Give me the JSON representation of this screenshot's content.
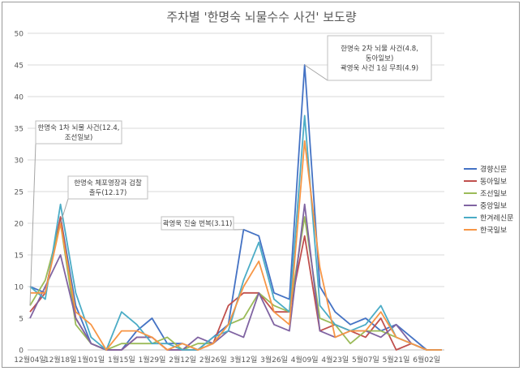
{
  "chart_data": {
    "type": "line",
    "title": "주차별 '한명숙 뇌물수수 사건' 보도량",
    "xlabel": "",
    "ylabel": "",
    "ylim": [
      0,
      50
    ],
    "yticks": [
      0,
      5,
      10,
      15,
      20,
      25,
      30,
      35,
      40,
      45,
      50
    ],
    "x_tick_labels": [
      "12월04일",
      "12월18일",
      "1월01일",
      "1월15일",
      "1월29일",
      "2월12일",
      "2월26일",
      "3월12일",
      "3월26일",
      "4월09일",
      "4월23일",
      "5월07일",
      "5월21일",
      "6월02일"
    ],
    "grid": true,
    "legend_position": "right",
    "x": [
      "12월04일",
      "12월11일",
      "12월18일",
      "12월25일",
      "1월01일",
      "1월08일",
      "1월15일",
      "1월22일",
      "1월29일",
      "2월05일",
      "2월12일",
      "2월19일",
      "2월26일",
      "3월05일",
      "3월12일",
      "3월19일",
      "3월26일",
      "4월02일",
      "4월09일",
      "4월16일",
      "4월23일",
      "4월30일",
      "5월07일",
      "5월14일",
      "5월21일",
      "5월28일",
      "6월02일",
      "6월09일"
    ],
    "series": [
      {
        "name": "경향신문",
        "color": "#4472c4",
        "values": [
          10,
          9,
          21,
          7,
          1,
          0,
          0,
          3,
          5,
          1,
          1,
          0,
          2,
          4,
          19,
          18,
          9,
          8,
          45,
          10,
          6,
          4,
          5,
          3,
          4,
          2,
          0,
          0
        ]
      },
      {
        "name": "동아일보",
        "color": "#c0504d",
        "values": [
          6,
          9,
          21,
          5,
          1,
          0,
          0,
          2,
          2,
          0,
          0,
          0,
          1,
          7,
          9,
          9,
          6,
          6,
          18,
          3,
          4,
          3,
          2,
          5,
          0,
          1,
          0,
          0
        ]
      },
      {
        "name": "조선일보",
        "color": "#9bbb59",
        "values": [
          7,
          11,
          20,
          4,
          1,
          0,
          1,
          1,
          1,
          2,
          0,
          1,
          1,
          4,
          5,
          9,
          7,
          6,
          21,
          5,
          4,
          1,
          3,
          3,
          2,
          1,
          0,
          0
        ]
      },
      {
        "name": "중앙일보",
        "color": "#8064a2",
        "values": [
          5,
          10,
          15,
          5,
          1,
          0,
          0,
          2,
          2,
          0,
          0,
          2,
          1,
          3,
          2,
          9,
          4,
          3,
          23,
          3,
          2,
          3,
          3,
          2,
          4,
          1,
          0,
          0
        ]
      },
      {
        "name": "한겨레신문",
        "color": "#4bacc6",
        "values": [
          10,
          8,
          23,
          9,
          2,
          0,
          6,
          4,
          1,
          1,
          0,
          0,
          2,
          3,
          11,
          17,
          8,
          6,
          37,
          7,
          4,
          3,
          4,
          7,
          2,
          1,
          0,
          0
        ]
      },
      {
        "name": "한국일보",
        "color": "#f79646",
        "values": [
          9,
          9,
          20,
          6,
          4,
          0,
          3,
          3,
          2,
          0,
          1,
          0,
          1,
          4,
          10,
          14,
          6,
          4,
          33,
          13,
          2,
          3,
          3,
          6,
          2,
          1,
          0,
          0
        ]
      }
    ],
    "annotations": [
      {
        "text": "한명숙 1차 뇌물 사건(12.4, 조선일보)",
        "lines": [
          "한명숙 1차 뇌물 사건(12.4,",
          "조선일보)"
        ]
      },
      {
        "text": "한명숙 체포영장과 검찰 출두(12.17)",
        "lines": [
          "한명숙 체포영장과 검찰",
          "출두(12.17)"
        ]
      },
      {
        "text": "곽영욱 진술 번복(3.11)",
        "lines": [
          "곽영욱 진술 번복(3.11)"
        ]
      },
      {
        "text": "한명숙 2차 뇌물 사건(4.8, 동아일보) 곽영욱 사건 1심 무죄(4.9)",
        "lines": [
          "한명숙 2차 뇌물 사건(4.8,",
          "동아일보)",
          "곽영욱 사건 1심 무죄(4.9)"
        ]
      }
    ]
  }
}
